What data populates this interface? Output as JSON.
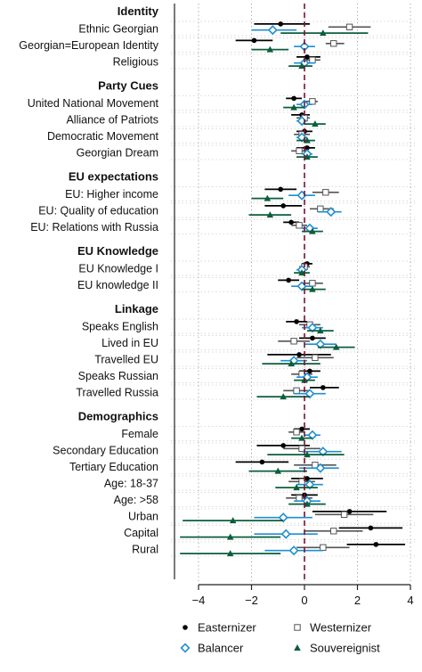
{
  "chart_data": {
    "type": "scatter",
    "title": "",
    "xlabel": "",
    "ylabel": "",
    "xlim": [
      -4.7,
      4.2
    ],
    "xticks": [
      -4,
      -2,
      0,
      2,
      4
    ],
    "reference_line": 0,
    "legend_position": "bottom",
    "series": [
      {
        "name": "Easternizer",
        "color": "#000000",
        "marker": "circle"
      },
      {
        "name": "Westernizer",
        "color": "#555555",
        "marker": "square"
      },
      {
        "name": "Balancer",
        "color": "#1f8fd1",
        "marker": "diamond"
      },
      {
        "name": "Souvereignist",
        "color": "#0b5e3c",
        "marker": "triangle"
      }
    ],
    "groups": [
      {
        "title": "Identity",
        "rows": [
          {
            "label": "Ethnic Georgian",
            "estimates": [
              {
                "series": "Easternizer",
                "est": -0.9,
                "lo": -1.9,
                "hi": 0.2
              },
              {
                "series": "Westernizer",
                "est": 1.7,
                "lo": 0.9,
                "hi": 2.5
              },
              {
                "series": "Balancer",
                "est": -1.2,
                "lo": -2.0,
                "hi": -0.3
              },
              {
                "series": "Souvereignist",
                "est": 0.7,
                "lo": -0.9,
                "hi": 2.4
              }
            ]
          },
          {
            "label": "Georgian=European Identity",
            "estimates": [
              {
                "series": "Easternizer",
                "est": -1.9,
                "lo": -2.6,
                "hi": -1.2
              },
              {
                "series": "Westernizer",
                "est": 1.1,
                "lo": 0.8,
                "hi": 1.5
              },
              {
                "series": "Balancer",
                "est": 0.0,
                "lo": -0.4,
                "hi": 0.4
              },
              {
                "series": "Souvereignist",
                "est": -1.3,
                "lo": -2.0,
                "hi": -0.6
              }
            ]
          },
          {
            "label": "Religious",
            "estimates": [
              {
                "series": "Easternizer",
                "est": 0.1,
                "lo": -0.3,
                "hi": 0.6
              },
              {
                "series": "Westernizer",
                "est": 0.3,
                "lo": 0.0,
                "hi": 0.6
              },
              {
                "series": "Balancer",
                "est": 0.0,
                "lo": -0.4,
                "hi": 0.4
              },
              {
                "series": "Souvereignist",
                "est": -0.1,
                "lo": -0.6,
                "hi": 0.3
              }
            ]
          }
        ]
      },
      {
        "title": "Party Cues",
        "rows": [
          {
            "label": "United National Movement",
            "estimates": [
              {
                "series": "Easternizer",
                "est": -0.4,
                "lo": -0.7,
                "hi": -0.1
              },
              {
                "series": "Westernizer",
                "est": 0.3,
                "lo": 0.0,
                "hi": 0.5
              },
              {
                "series": "Balancer",
                "est": 0.0,
                "lo": -0.3,
                "hi": 0.3
              },
              {
                "series": "Souvereignist",
                "est": -0.4,
                "lo": -0.8,
                "hi": 0.0
              }
            ]
          },
          {
            "label": "Alliance of Patriots",
            "estimates": [
              {
                "series": "Easternizer",
                "est": -0.1,
                "lo": -0.5,
                "hi": 0.2
              },
              {
                "series": "Westernizer",
                "est": 0.0,
                "lo": -0.3,
                "hi": 0.2
              },
              {
                "series": "Balancer",
                "est": -0.1,
                "lo": -0.3,
                "hi": 0.1
              },
              {
                "series": "Souvereignist",
                "est": 0.4,
                "lo": 0.0,
                "hi": 0.8
              }
            ]
          },
          {
            "label": "Democratic Movement",
            "estimates": [
              {
                "series": "Easternizer",
                "est": 0.0,
                "lo": -0.3,
                "hi": 0.3
              },
              {
                "series": "Westernizer",
                "est": -0.1,
                "lo": -0.4,
                "hi": 0.2
              },
              {
                "series": "Balancer",
                "est": -0.1,
                "lo": -0.3,
                "hi": 0.1
              },
              {
                "series": "Souvereignist",
                "est": 0.1,
                "lo": -0.3,
                "hi": 0.4
              }
            ]
          },
          {
            "label": "Georgian Dream",
            "estimates": [
              {
                "series": "Easternizer",
                "est": 0.1,
                "lo": -0.3,
                "hi": 0.4
              },
              {
                "series": "Westernizer",
                "est": -0.2,
                "lo": -0.5,
                "hi": 0.1
              },
              {
                "series": "Balancer",
                "est": 0.1,
                "lo": -0.1,
                "hi": 0.3
              },
              {
                "series": "Souvereignist",
                "est": 0.1,
                "lo": -0.3,
                "hi": 0.5
              }
            ]
          }
        ]
      },
      {
        "title": "EU expectations",
        "rows": [
          {
            "label": "EU: Higher income",
            "estimates": [
              {
                "series": "Easternizer",
                "est": -0.9,
                "lo": -1.5,
                "hi": -0.3
              },
              {
                "series": "Westernizer",
                "est": 0.8,
                "lo": 0.3,
                "hi": 1.3
              },
              {
                "series": "Balancer",
                "est": -0.1,
                "lo": -0.6,
                "hi": 0.4
              },
              {
                "series": "Souvereignist",
                "est": -1.4,
                "lo": -2.0,
                "hi": -0.8
              }
            ]
          },
          {
            "label": "EU: Quality of education",
            "estimates": [
              {
                "series": "Easternizer",
                "est": -0.8,
                "lo": -1.5,
                "hi": -0.1
              },
              {
                "series": "Westernizer",
                "est": 0.6,
                "lo": 0.2,
                "hi": 1.1
              },
              {
                "series": "Balancer",
                "est": 1.0,
                "lo": 0.5,
                "hi": 1.4
              },
              {
                "series": "Souvereignist",
                "est": -1.3,
                "lo": -2.1,
                "hi": -0.5
              }
            ]
          },
          {
            "label": "EU: Relations with Russia",
            "estimates": [
              {
                "series": "Easternizer",
                "est": -0.5,
                "lo": -0.8,
                "hi": -0.2
              },
              {
                "series": "Westernizer",
                "est": -0.2,
                "lo": -0.5,
                "hi": 0.1
              },
              {
                "series": "Balancer",
                "est": 0.2,
                "lo": -0.1,
                "hi": 0.5
              },
              {
                "series": "Souvereignist",
                "est": 0.3,
                "lo": -0.1,
                "hi": 0.7
              }
            ]
          }
        ]
      },
      {
        "title": "EU Knowledge",
        "rows": [
          {
            "label": "EU Knowledge I",
            "estimates": [
              {
                "series": "Easternizer",
                "est": 0.1,
                "lo": -0.1,
                "hi": 0.3
              },
              {
                "series": "Westernizer",
                "est": 0.0,
                "lo": -0.2,
                "hi": 0.2
              },
              {
                "series": "Balancer",
                "est": -0.1,
                "lo": -0.3,
                "hi": 0.1
              },
              {
                "series": "Souvereignist",
                "est": -0.1,
                "lo": -0.4,
                "hi": 0.2
              }
            ]
          },
          {
            "label": "EU knowledge II",
            "estimates": [
              {
                "series": "Easternizer",
                "est": -0.6,
                "lo": -1.0,
                "hi": -0.2
              },
              {
                "series": "Westernizer",
                "est": 0.3,
                "lo": -0.1,
                "hi": 0.7
              },
              {
                "series": "Balancer",
                "est": -0.1,
                "lo": -0.5,
                "hi": 0.3
              },
              {
                "series": "Souvereignist",
                "est": 0.3,
                "lo": -0.1,
                "hi": 0.8
              }
            ]
          }
        ]
      },
      {
        "title": "Linkage",
        "rows": [
          {
            "label": "Speaks English",
            "estimates": [
              {
                "series": "Easternizer",
                "est": -0.3,
                "lo": -0.7,
                "hi": 0.1
              },
              {
                "series": "Westernizer",
                "est": 0.2,
                "lo": -0.2,
                "hi": 0.6
              },
              {
                "series": "Balancer",
                "est": 0.3,
                "lo": -0.1,
                "hi": 0.7
              },
              {
                "series": "Souvereignist",
                "est": 0.6,
                "lo": 0.1,
                "hi": 1.1
              }
            ]
          },
          {
            "label": "Lived in EU",
            "estimates": [
              {
                "series": "Easternizer",
                "est": 0.3,
                "lo": -0.2,
                "hi": 0.8
              },
              {
                "series": "Westernizer",
                "est": -0.4,
                "lo": -1.0,
                "hi": 0.2
              },
              {
                "series": "Balancer",
                "est": 0.6,
                "lo": 0.0,
                "hi": 1.2
              },
              {
                "series": "Souvereignist",
                "est": 1.2,
                "lo": 0.5,
                "hi": 1.9
              }
            ]
          },
          {
            "label": "Travelled EU",
            "estimates": [
              {
                "series": "Easternizer",
                "est": -0.2,
                "lo": -1.4,
                "hi": 1.0
              },
              {
                "series": "Westernizer",
                "est": 0.4,
                "lo": -0.3,
                "hi": 1.1
              },
              {
                "series": "Balancer",
                "est": -0.4,
                "lo": -0.9,
                "hi": 0.1
              },
              {
                "series": "Souvereignist",
                "est": -0.5,
                "lo": -1.6,
                "hi": 0.6
              }
            ]
          },
          {
            "label": "Speaks Russian",
            "estimates": [
              {
                "series": "Easternizer",
                "est": 0.2,
                "lo": -0.2,
                "hi": 0.6
              },
              {
                "series": "Westernizer",
                "est": -0.1,
                "lo": -0.5,
                "hi": 0.3
              },
              {
                "series": "Balancer",
                "est": 0.1,
                "lo": -0.3,
                "hi": 0.5
              },
              {
                "series": "Souvereignist",
                "est": 0.0,
                "lo": -0.4,
                "hi": 0.4
              }
            ]
          },
          {
            "label": "Travelled Russia",
            "estimates": [
              {
                "series": "Easternizer",
                "est": 0.7,
                "lo": 0.2,
                "hi": 1.3
              },
              {
                "series": "Westernizer",
                "est": -0.3,
                "lo": -0.8,
                "hi": 0.2
              },
              {
                "series": "Balancer",
                "est": 0.2,
                "lo": -0.4,
                "hi": 0.8
              },
              {
                "series": "Souvereignist",
                "est": -0.8,
                "lo": -1.8,
                "hi": 0.2
              }
            ]
          }
        ]
      },
      {
        "title": "Demographics",
        "rows": [
          {
            "label": "Female",
            "estimates": [
              {
                "series": "Easternizer",
                "est": -0.1,
                "lo": -0.4,
                "hi": 0.2
              },
              {
                "series": "Westernizer",
                "est": -0.3,
                "lo": -0.6,
                "hi": 0.0
              },
              {
                "series": "Balancer",
                "est": 0.3,
                "lo": 0.0,
                "hi": 0.6
              },
              {
                "series": "Souvereignist",
                "est": -0.1,
                "lo": -0.5,
                "hi": 0.3
              }
            ]
          },
          {
            "label": "Secondary Education",
            "estimates": [
              {
                "series": "Easternizer",
                "est": -0.8,
                "lo": -1.8,
                "hi": 0.2
              },
              {
                "series": "Westernizer",
                "est": -0.1,
                "lo": -0.8,
                "hi": 0.6
              },
              {
                "series": "Balancer",
                "est": 0.7,
                "lo": -0.1,
                "hi": 1.4
              },
              {
                "series": "Souvereignist",
                "est": 0.1,
                "lo": -1.4,
                "hi": 1.5
              }
            ]
          },
          {
            "label": "Tertiary Education",
            "estimates": [
              {
                "series": "Easternizer",
                "est": -1.6,
                "lo": -2.6,
                "hi": -0.6
              },
              {
                "series": "Westernizer",
                "est": 0.4,
                "lo": -0.4,
                "hi": 1.2
              },
              {
                "series": "Balancer",
                "est": 0.6,
                "lo": -0.2,
                "hi": 1.3
              },
              {
                "series": "Souvereignist",
                "est": -1.0,
                "lo": -2.1,
                "hi": 0.1
              }
            ]
          },
          {
            "label": "Age: 18-37",
            "estimates": [
              {
                "series": "Easternizer",
                "est": 0.1,
                "lo": -0.5,
                "hi": 0.7
              },
              {
                "series": "Westernizer",
                "est": -0.1,
                "lo": -0.6,
                "hi": 0.4
              },
              {
                "series": "Balancer",
                "est": 0.2,
                "lo": -0.3,
                "hi": 0.7
              },
              {
                "series": "Souvereignist",
                "est": -0.3,
                "lo": -1.1,
                "hi": 0.5
              }
            ]
          },
          {
            "label": "Age: >58",
            "estimates": [
              {
                "series": "Easternizer",
                "est": 0.0,
                "lo": -0.5,
                "hi": 0.5
              },
              {
                "series": "Westernizer",
                "est": -0.2,
                "lo": -0.7,
                "hi": 0.3
              },
              {
                "series": "Balancer",
                "est": 0.1,
                "lo": -0.4,
                "hi": 0.6
              },
              {
                "series": "Souvereignist",
                "est": 0.1,
                "lo": -0.6,
                "hi": 0.8
              }
            ]
          },
          {
            "label": "Urban",
            "estimates": [
              {
                "series": "Easternizer",
                "est": 1.7,
                "lo": 0.3,
                "hi": 3.1
              },
              {
                "series": "Westernizer",
                "est": 1.5,
                "lo": 0.4,
                "hi": 2.6
              },
              {
                "series": "Balancer",
                "est": -0.8,
                "lo": -1.9,
                "hi": 0.3
              },
              {
                "series": "Souvereignist",
                "est": -2.7,
                "lo": -4.6,
                "hi": -0.8
              }
            ]
          },
          {
            "label": "Capital",
            "estimates": [
              {
                "series": "Easternizer",
                "est": 2.5,
                "lo": 1.3,
                "hi": 3.7
              },
              {
                "series": "Westernizer",
                "est": 1.1,
                "lo": 0.0,
                "hi": 2.2
              },
              {
                "series": "Balancer",
                "est": -0.7,
                "lo": -1.9,
                "hi": 0.5
              },
              {
                "series": "Souvereignist",
                "est": -2.8,
                "lo": -4.7,
                "hi": -0.9
              }
            ]
          },
          {
            "label": "Rural",
            "estimates": [
              {
                "series": "Easternizer",
                "est": 2.7,
                "lo": 1.6,
                "hi": 3.8
              },
              {
                "series": "Westernizer",
                "est": 0.7,
                "lo": -0.3,
                "hi": 1.7
              },
              {
                "series": "Balancer",
                "est": -0.4,
                "lo": -1.5,
                "hi": 0.7
              },
              {
                "series": "Souvereignist",
                "est": -2.8,
                "lo": -4.7,
                "hi": -0.9
              }
            ]
          }
        ]
      }
    ]
  }
}
